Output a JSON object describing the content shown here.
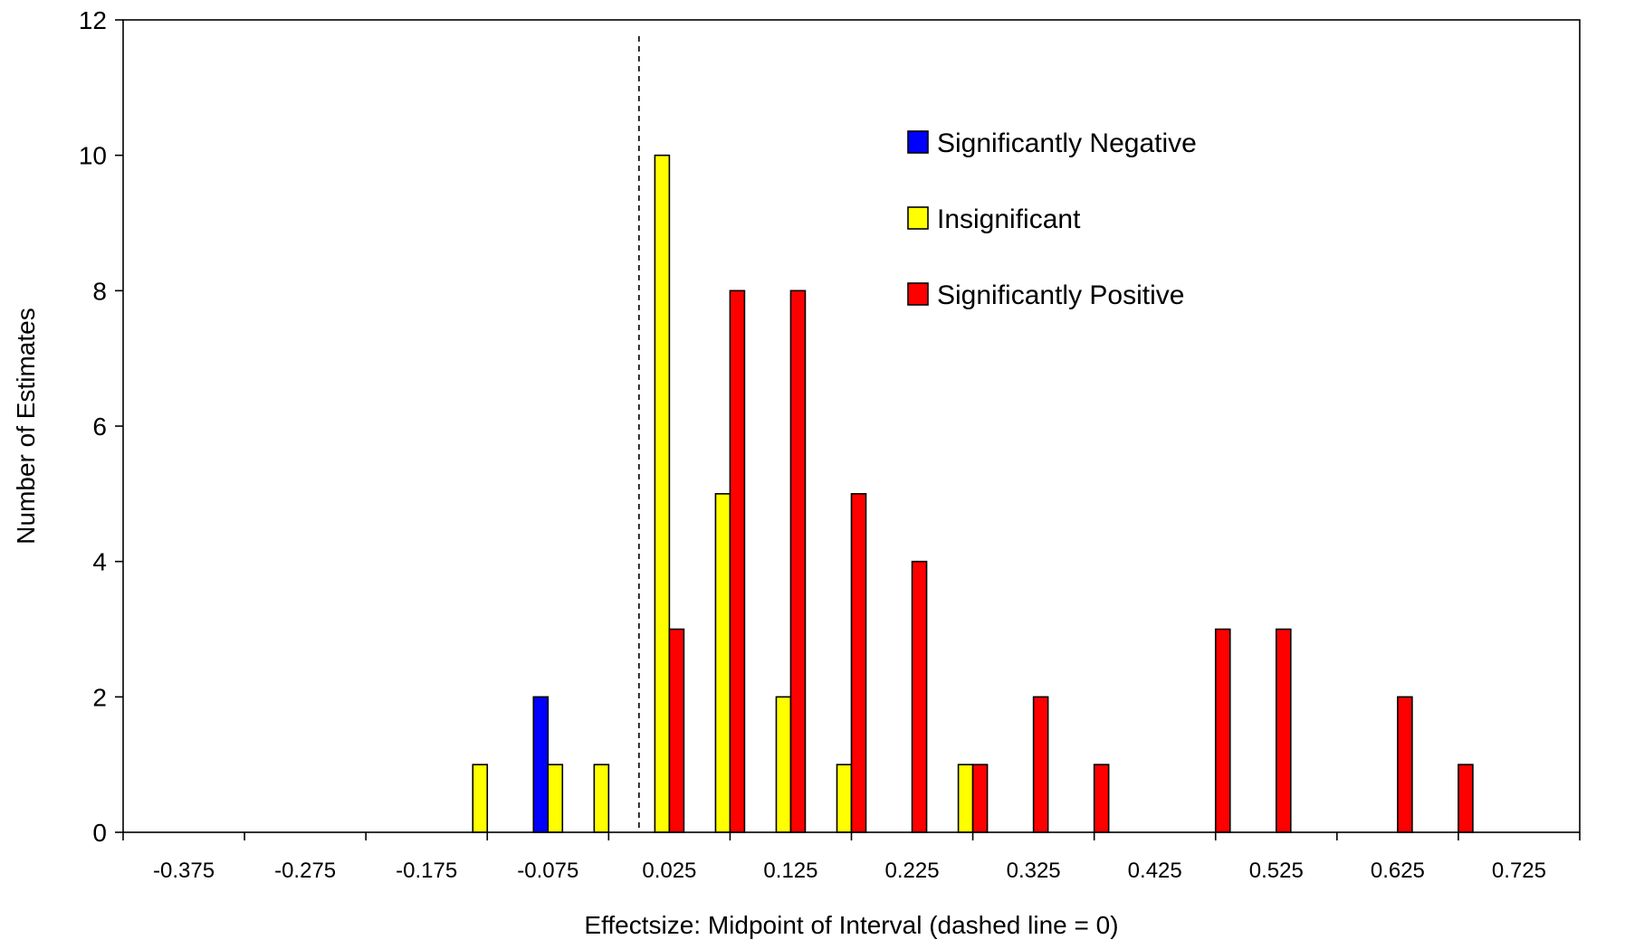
{
  "chart_data": {
    "type": "bar",
    "xlabel": "Effectsize: Midpoint of Interval (dashed line = 0)",
    "ylabel": "Number of Estimates",
    "x_tick_labels": [
      "-0.375",
      "-0.275",
      "-0.175",
      "-0.075",
      "0.025",
      "0.125",
      "0.225",
      "0.325",
      "0.425",
      "0.525",
      "0.625",
      "0.725"
    ],
    "y_tick_labels": [
      "0",
      "2",
      "4",
      "6",
      "8",
      "10",
      "12"
    ],
    "ylim": [
      0,
      12
    ],
    "grid": false,
    "legend_position": "top-right",
    "dashed_line_at": 0,
    "categories": [
      "-0.125",
      "-0.075",
      "-0.025",
      "0.025",
      "0.075",
      "0.125",
      "0.175",
      "0.225",
      "0.275",
      "0.325",
      "0.375",
      "0.425",
      "0.475",
      "0.525",
      "0.575",
      "0.625",
      "0.675"
    ],
    "series": [
      {
        "name": "Significantly Negative",
        "color": "#0000ff",
        "values": [
          0,
          2,
          0,
          0,
          0,
          0,
          0,
          0,
          0,
          0,
          0,
          0,
          0,
          0,
          0,
          0,
          0
        ]
      },
      {
        "name": "Insignificant",
        "color": "#ffff00",
        "values": [
          1,
          1,
          1,
          10,
          5,
          2,
          1,
          0,
          1,
          0,
          0,
          0,
          0,
          0,
          0,
          0,
          0
        ]
      },
      {
        "name": "Significantly Positive",
        "color": "#ff0000",
        "values": [
          0,
          0,
          0,
          3,
          8,
          8,
          5,
          4,
          1,
          2,
          1,
          0,
          3,
          3,
          0,
          2,
          1
        ]
      }
    ]
  }
}
